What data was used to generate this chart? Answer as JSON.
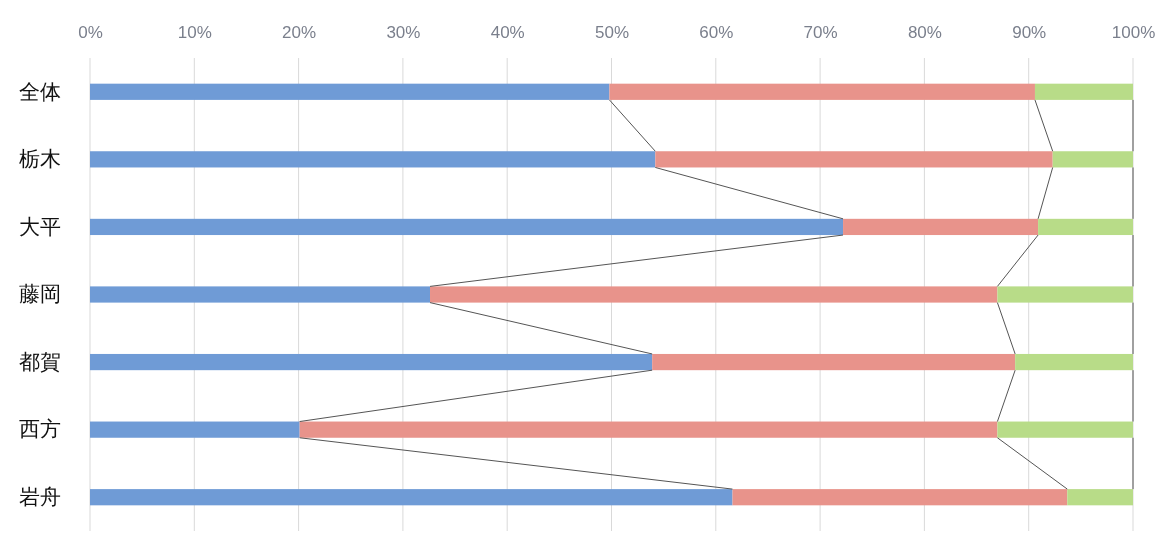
{
  "chart_data": {
    "type": "bar",
    "orientation": "horizontal",
    "stacked": true,
    "categories": [
      "全体",
      "栃木",
      "大平",
      "藤岡",
      "都賀",
      "西方",
      "岩舟"
    ],
    "series": [
      {
        "color": "#6f9bd6",
        "values": [
          49.8,
          54.2,
          72.2,
          32.6,
          53.9,
          20.1,
          61.6
        ]
      },
      {
        "color": "#e8938b",
        "values": [
          40.8,
          38.1,
          18.7,
          54.4,
          34.8,
          66.9,
          32.1
        ]
      },
      {
        "color": "#b8dc88",
        "values": [
          9.4,
          7.7,
          9.1,
          13.0,
          11.3,
          13.0,
          6.3
        ]
      }
    ],
    "xlim": [
      0,
      100
    ],
    "xticks": [
      {
        "value": 0,
        "label": "0%"
      },
      {
        "value": 10,
        "label": "10%"
      },
      {
        "value": 20,
        "label": "20%"
      },
      {
        "value": 30,
        "label": "30%"
      },
      {
        "value": 40,
        "label": "40%"
      },
      {
        "value": 50,
        "label": "50%"
      },
      {
        "value": 60,
        "label": "60%"
      },
      {
        "value": 70,
        "label": "70%"
      },
      {
        "value": 80,
        "label": "80%"
      },
      {
        "value": 90,
        "label": "90%"
      },
      {
        "value": 100,
        "label": "100%"
      }
    ],
    "grid": "x"
  }
}
